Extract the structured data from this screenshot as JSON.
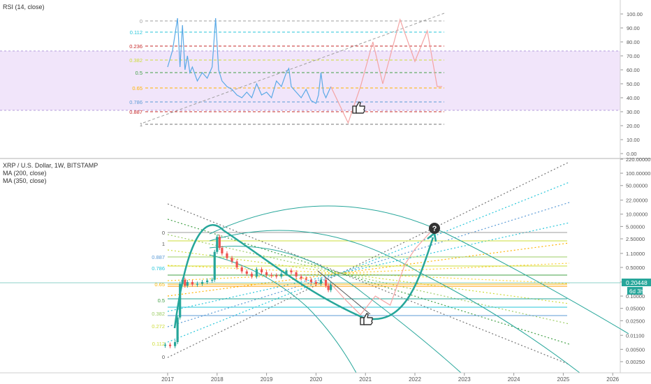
{
  "rsi_panel": {
    "title": "RSI (14, close)",
    "axis_ticks": [
      "100.00",
      "90.00",
      "80.00",
      "70.00",
      "60.00",
      "50.00",
      "40.00",
      "30.00",
      "20.00",
      "10.00",
      "0.00"
    ]
  },
  "price_panel": {
    "title": "XRP / U.S. Dollar, 1W, BITSTAMP",
    "ma200_label": "MA (200, close)",
    "ma350_label": "MA (350, close)",
    "axis_ticks": [
      "220.00000",
      "100.00000",
      "50.00000",
      "22.00000",
      "10.00000",
      "5.00000",
      "2.50000",
      "1.10000",
      "0.50000",
      "0.22000",
      "0.10000",
      "0.05000",
      "0.02500",
      "0.01100",
      "0.00500",
      "0.00250"
    ],
    "current_price_tag": "0.20448",
    "countdown_tag": "6d 3h"
  },
  "time_axis": [
    "2017",
    "2018",
    "2019",
    "2020",
    "2021",
    "2022",
    "2023",
    "2024",
    "2025",
    "2026"
  ],
  "colors": {
    "rsi_line": "#5aa9e6",
    "rsi_band": "#e9d7f7",
    "projection": "#f4a4a4",
    "arc": "#26a69a",
    "candle_up": "#26a69a",
    "candle_down": "#ef5350"
  },
  "chart_data": [
    {
      "type": "line",
      "name": "RSI (14, close)",
      "ylim": [
        0,
        100
      ],
      "band": [
        30,
        70
      ],
      "x": [
        2017.0,
        2017.1,
        2017.2,
        2017.25,
        2017.3,
        2017.35,
        2017.4,
        2017.45,
        2017.5,
        2017.6,
        2017.7,
        2017.8,
        2017.9,
        2017.97,
        2018.03,
        2018.1,
        2018.2,
        2018.3,
        2018.4,
        2018.5,
        2018.6,
        2018.7,
        2018.8,
        2018.9,
        2019.0,
        2019.1,
        2019.2,
        2019.3,
        2019.4,
        2019.45,
        2019.5,
        2019.6,
        2019.7,
        2019.8,
        2019.9,
        2020.0,
        2020.05,
        2020.1,
        2020.15,
        2020.2,
        2020.3
      ],
      "values": [
        62,
        74,
        97,
        62,
        92,
        60,
        70,
        58,
        62,
        52,
        58,
        54,
        62,
        97,
        60,
        52,
        48,
        46,
        42,
        40,
        44,
        40,
        50,
        42,
        44,
        40,
        52,
        48,
        58,
        61,
        48,
        44,
        40,
        46,
        38,
        36,
        42,
        58,
        44,
        40,
        48
      ],
      "projection": {
        "x": [
          2020.3,
          2020.65,
          2020.9,
          2021.15,
          2021.35,
          2021.7,
          2022.0,
          2022.25,
          2022.45,
          2022.55
        ],
        "values": [
          48,
          22,
          48,
          80,
          50,
          96,
          66,
          88,
          48,
          48
        ]
      },
      "fib_levels": [
        {
          "label": "0",
          "value": 95,
          "color": "#9e9e9e"
        },
        {
          "label": "0.112",
          "value": 87,
          "color": "#26c6da"
        },
        {
          "label": "0.236",
          "value": 77,
          "color": "#c62828"
        },
        {
          "label": "0.382",
          "value": 67,
          "color": "#cddc39"
        },
        {
          "label": "0.5",
          "value": 58,
          "color": "#43a047"
        },
        {
          "label": "0.65",
          "value": 47,
          "color": "#ffb300"
        },
        {
          "label": "0.786",
          "value": 37,
          "color": "#5c9bd6"
        },
        {
          "label": "0.887",
          "value": 30,
          "color": "#c62828"
        },
        {
          "label": "1",
          "value": 21,
          "color": "#757575"
        }
      ]
    },
    {
      "type": "candlestick",
      "name": "XRP / U.S. Dollar, 1W, BITSTAMP",
      "yscale": "log",
      "ylim": [
        0.0018,
        250
      ],
      "x": [
        2016.95,
        2017.05,
        2017.15,
        2017.2,
        2017.25,
        2017.3,
        2017.35,
        2017.4,
        2017.5,
        2017.6,
        2017.7,
        2017.8,
        2017.9,
        2017.95,
        2018.0,
        2018.05,
        2018.1,
        2018.2,
        2018.3,
        2018.4,
        2018.5,
        2018.6,
        2018.7,
        2018.8,
        2018.9,
        2019.0,
        2019.1,
        2019.2,
        2019.3,
        2019.4,
        2019.5,
        2019.6,
        2019.7,
        2019.8,
        2019.9,
        2020.0,
        2020.1,
        2020.2,
        2020.25,
        2020.3
      ],
      "close": [
        0.0065,
        0.006,
        0.0075,
        0.03,
        0.2,
        0.25,
        0.18,
        0.22,
        0.19,
        0.2,
        0.22,
        0.24,
        0.25,
        1.2,
        2.8,
        1.5,
        1.1,
        0.85,
        0.7,
        0.5,
        0.4,
        0.35,
        0.3,
        0.45,
        0.38,
        0.33,
        0.32,
        0.3,
        0.35,
        0.42,
        0.38,
        0.3,
        0.27,
        0.25,
        0.22,
        0.2,
        0.25,
        0.18,
        0.14,
        0.2
      ],
      "projection": {
        "x": [
          2020.3,
          2020.6,
          2020.9,
          2021.2,
          2021.5,
          2021.8,
          2022.0,
          2022.3
        ],
        "values": [
          0.2,
          0.08,
          0.035,
          0.1,
          0.06,
          0.6,
          1.4,
          3.5
        ]
      }
    }
  ]
}
